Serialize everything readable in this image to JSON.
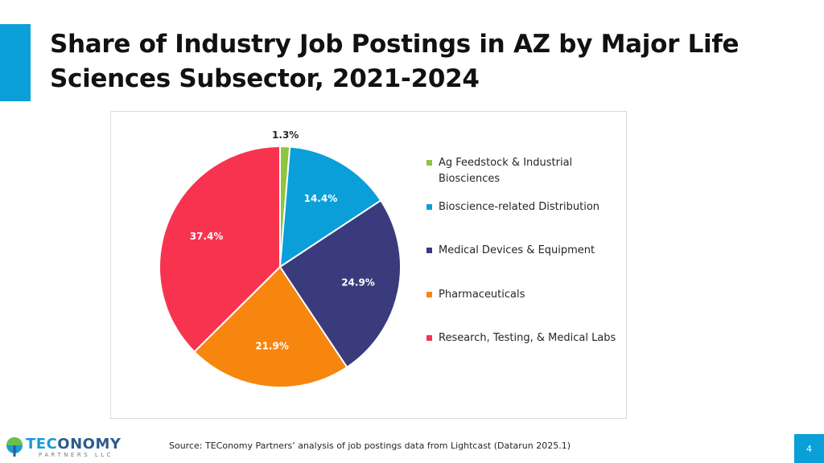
{
  "slide": {
    "title": "Share of Industry Job Postings in AZ by Major Life Sciences Subsector, 2021-2024",
    "source": "Source: TEConomy Partners’ analysis of job postings data from Lightcast (Datarun 2025.1)",
    "page_number": "4",
    "accent_color": "#0a9fd9"
  },
  "logo": {
    "name_part1": "TEC",
    "name_part2": "ONOMY",
    "tagline": "PARTNERS LLC",
    "icon": "tree-logo-icon"
  },
  "chart_data": {
    "type": "pie",
    "title": "",
    "legend_position": "right",
    "slices": [
      {
        "label": "Ag Feedstock & Industrial Biosciences",
        "value": 1.3,
        "display": "1.3%",
        "color": "#8dc63f"
      },
      {
        "label": "Bioscience-related Distribution",
        "value": 14.4,
        "display": "14.4%",
        "color": "#0a9fd9"
      },
      {
        "label": "Medical Devices & Equipment",
        "value": 24.9,
        "display": "24.9%",
        "color": "#393b7c"
      },
      {
        "label": "Pharmaceuticals",
        "value": 21.9,
        "display": "21.9%",
        "color": "#f7860f"
      },
      {
        "label": "Research, Testing, & Medical Labs",
        "value": 37.4,
        "display": "37.4%",
        "color": "#f8334f"
      }
    ]
  }
}
